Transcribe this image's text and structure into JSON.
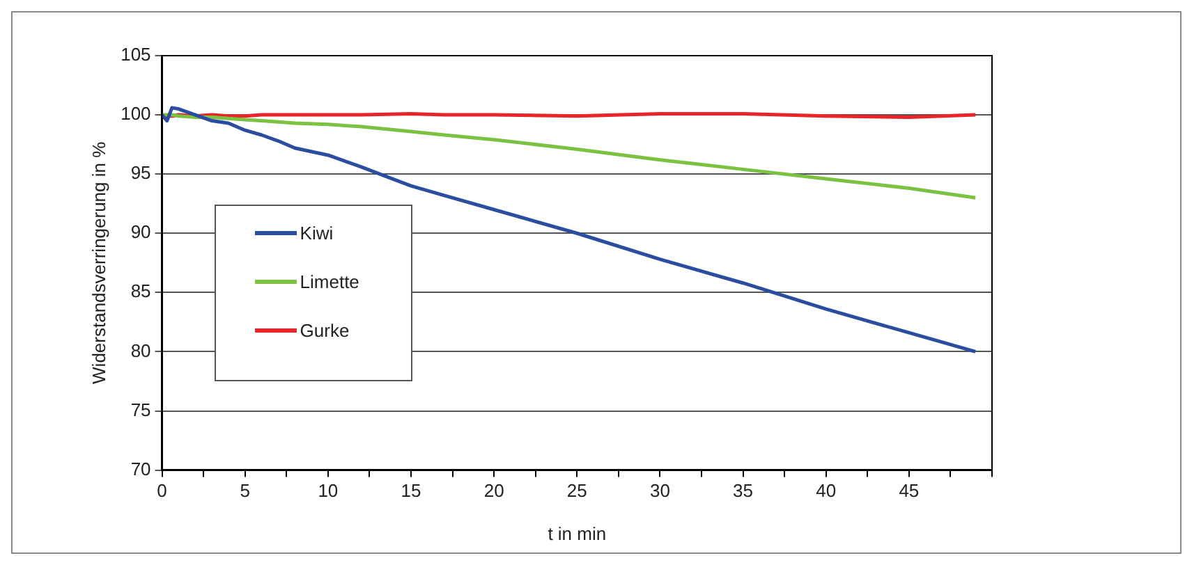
{
  "chart_data": {
    "type": "line",
    "xlabel": "t in min",
    "ylabel": "Widerstandsverringerung in %",
    "x": [
      0,
      0.3,
      0.6,
      1,
      2,
      3,
      4,
      5,
      6,
      7,
      8,
      10,
      12,
      15,
      17,
      20,
      25,
      30,
      35,
      40,
      45,
      49
    ],
    "series": [
      {
        "name": "Kiwi",
        "color": "#2a4da0",
        "values": [
          100,
          99.5,
          100.6,
          100.5,
          100,
          99.5,
          99.3,
          98.7,
          98.3,
          97.8,
          97.2,
          96.6,
          95.6,
          94,
          93.2,
          92,
          90,
          87.8,
          85.8,
          83.6,
          81.6,
          80
        ]
      },
      {
        "name": "Limette",
        "color": "#7cc242",
        "values": [
          100,
          100,
          100,
          99.9,
          99.8,
          99.8,
          99.7,
          99.6,
          99.5,
          99.4,
          99.3,
          99.2,
          99,
          98.6,
          98.3,
          97.9,
          97.1,
          96.2,
          95.4,
          94.6,
          93.8,
          93
        ]
      },
      {
        "name": "Gurke",
        "color": "#e8262a",
        "values": [
          99.8,
          99.9,
          99.9,
          100,
          99.9,
          100,
          99.9,
          99.9,
          100,
          100,
          100,
          100,
          100,
          100.1,
          100,
          100,
          99.9,
          100.1,
          100.1,
          99.9,
          99.8,
          100
        ]
      }
    ],
    "xlim": [
      0,
      50
    ],
    "xticks": [
      0,
      {
        "value": 2.5,
        "label": null
      },
      5,
      {
        "value": 7.5,
        "label": null
      },
      10,
      {
        "value": 12.5,
        "label": null
      },
      15,
      {
        "value": 17.5,
        "label": null
      },
      20,
      {
        "value": 22.5,
        "label": null
      },
      25,
      {
        "value": 27.5,
        "label": null
      },
      30,
      {
        "value": 32.5,
        "label": null
      },
      35,
      {
        "value": 37.5,
        "label": null
      },
      40,
      {
        "value": 42.5,
        "label": null
      },
      45,
      {
        "value": 47.5,
        "label": null
      },
      {
        "value": 50,
        "label": null
      }
    ],
    "ylim": [
      70,
      105
    ],
    "yticks": [
      70,
      75,
      80,
      85,
      90,
      95,
      100,
      105
    ],
    "grid": "y",
    "legend": "center left",
    "marker": "none",
    "line_style": "solid"
  }
}
